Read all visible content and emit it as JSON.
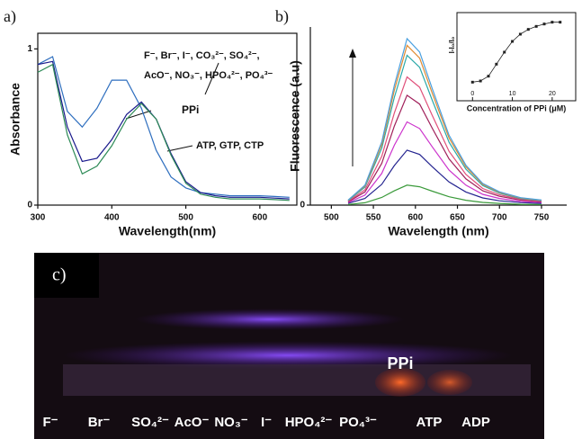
{
  "chart_data": [
    {
      "type": "line",
      "panel_label": "a)",
      "x_label": "Wavelength(nm)",
      "y_label": "Absorbance",
      "x": [
        300,
        320,
        340,
        360,
        380,
        400,
        420,
        440,
        460,
        480,
        500,
        520,
        540,
        560,
        580,
        600,
        620,
        640
      ],
      "xlim": [
        300,
        650
      ],
      "xticks": [
        300,
        400,
        500,
        600
      ],
      "ylim": [
        0,
        1.1
      ],
      "yticks": [
        0,
        1
      ],
      "series": [
        {
          "name": "F⁻, Br⁻, I⁻, CO₃²⁻, SO₄²⁻, AcO⁻, NO₃⁻, HPO₄²⁻, PO₄³⁻",
          "color": "#2f6fbf",
          "values": [
            0.9,
            0.95,
            0.6,
            0.5,
            0.62,
            0.8,
            0.8,
            0.62,
            0.35,
            0.18,
            0.11,
            0.08,
            0.07,
            0.06,
            0.06,
            0.06,
            0.055,
            0.05
          ]
        },
        {
          "name": "PPi",
          "color": "#1a1a8c",
          "values": [
            0.9,
            0.92,
            0.5,
            0.28,
            0.3,
            0.42,
            0.58,
            0.66,
            0.55,
            0.33,
            0.15,
            0.08,
            0.06,
            0.05,
            0.05,
            0.05,
            0.045,
            0.04
          ]
        },
        {
          "name": "ATP, GTP, CTP",
          "color": "#2e8b57",
          "values": [
            0.85,
            0.9,
            0.45,
            0.2,
            0.25,
            0.38,
            0.55,
            0.65,
            0.55,
            0.32,
            0.14,
            0.07,
            0.05,
            0.04,
            0.04,
            0.04,
            0.035,
            0.03
          ]
        }
      ]
    },
    {
      "type": "line",
      "panel_label": "b)",
      "x_label": "Wavelength (nm)",
      "y_label": "Fluorescence (a.u)",
      "x": [
        520,
        540,
        560,
        575,
        590,
        605,
        620,
        640,
        660,
        680,
        700,
        725,
        750
      ],
      "xlim": [
        475,
        780
      ],
      "xticks": [
        500,
        550,
        600,
        650,
        700,
        750
      ],
      "ylim": [
        0,
        1.07
      ],
      "yticks": [
        0
      ],
      "series": [
        {
          "color": "#3a9a3a",
          "values": [
            0.004,
            0.014,
            0.046,
            0.086,
            0.12,
            0.11,
            0.084,
            0.05,
            0.029,
            0.016,
            0.01,
            0.005,
            0.004
          ]
        },
        {
          "color": "#23238f",
          "values": [
            0.01,
            0.04,
            0.125,
            0.238,
            0.33,
            0.304,
            0.231,
            0.139,
            0.079,
            0.043,
            0.026,
            0.015,
            0.01
          ]
        },
        {
          "color": "#cc33cc",
          "values": [
            0.015,
            0.06,
            0.19,
            0.36,
            0.5,
            0.46,
            0.35,
            0.21,
            0.12,
            0.065,
            0.04,
            0.022,
            0.015
          ]
        },
        {
          "color": "#a0205a",
          "values": [
            0.02,
            0.079,
            0.251,
            0.475,
            0.66,
            0.607,
            0.462,
            0.277,
            0.158,
            0.086,
            0.053,
            0.03,
            0.02
          ]
        },
        {
          "color": "#e0507a",
          "values": [
            0.023,
            0.092,
            0.293,
            0.554,
            0.77,
            0.708,
            0.539,
            0.323,
            0.185,
            0.1,
            0.062,
            0.035,
            0.023
          ]
        },
        {
          "color": "#2aa8a8",
          "values": [
            0.027,
            0.108,
            0.342,
            0.648,
            0.9,
            0.828,
            0.63,
            0.378,
            0.216,
            0.117,
            0.072,
            0.04,
            0.027
          ]
        },
        {
          "color": "#e08a30",
          "values": [
            0.029,
            0.115,
            0.365,
            0.691,
            0.96,
            0.883,
            0.672,
            0.403,
            0.23,
            0.125,
            0.077,
            0.043,
            0.029
          ]
        },
        {
          "color": "#4aa0e0",
          "values": [
            0.03,
            0.12,
            0.38,
            0.72,
            1.0,
            0.92,
            0.7,
            0.42,
            0.24,
            0.13,
            0.08,
            0.045,
            0.03
          ]
        }
      ]
    },
    {
      "type": "scatter-line",
      "x_label": "Concentration of PPi (μM)",
      "y_label": "I-I₀/I₀",
      "x": [
        0,
        2,
        4,
        6,
        8,
        10,
        12,
        14,
        16,
        18,
        20,
        22
      ],
      "values": [
        0,
        0.02,
        0.1,
        0.3,
        0.5,
        0.68,
        0.8,
        0.88,
        0.93,
        0.97,
        1.0,
        1.0
      ],
      "xlim": [
        -3,
        25
      ],
      "xticks": [
        0,
        10,
        20
      ],
      "ylim": [
        -0.1,
        1.1
      ],
      "color": "#222222"
    }
  ],
  "image_panel": {
    "label": "c)",
    "overlay": "PPi",
    "labels": [
      "F⁻",
      "Br⁻",
      "SO₄²⁻",
      "AcO⁻",
      "NO₃⁻",
      "I⁻",
      "HPO₄²⁻",
      "PO₄³⁻",
      "ATP",
      "ADP"
    ]
  }
}
